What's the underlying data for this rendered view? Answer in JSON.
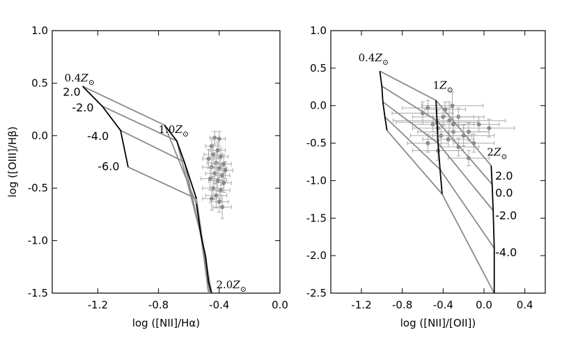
{
  "chart_data": [
    {
      "type": "line",
      "xlabel": "log ([NII]/Hα)",
      "ylabel": "log ([OIII]/Hβ)",
      "xlim": [
        -1.5,
        0.0
      ],
      "ylim": [
        -1.5,
        1.0
      ],
      "xticks": [
        "-1.2",
        "-0.8",
        "-0.4",
        "0.0"
      ],
      "xtick_values": [
        -1.2,
        -0.8,
        -0.4,
        0.0
      ],
      "yticks": [
        "1.0",
        "0.5",
        "0.0",
        "-0.5",
        "-1.0",
        "-1.5"
      ],
      "ytick_values": [
        1.0,
        0.5,
        0.0,
        -0.5,
        -1.0,
        -1.5
      ],
      "metallicity_labels": [
        {
          "prefix": "0.4",
          "x": -1.42,
          "y": 0.55
        },
        {
          "prefix": "1.0",
          "x": -0.8,
          "y": 0.06
        },
        {
          "prefix": "2.0",
          "x": -0.42,
          "y": -1.42
        }
      ],
      "ionization_labels": [
        {
          "text": "2.0",
          "x": -1.43,
          "y": 0.42
        },
        {
          "text": "-2.0",
          "x": -1.37,
          "y": 0.27
        },
        {
          "text": "-4.0",
          "x": -1.27,
          "y": 0.0
        },
        {
          "text": "-6.0",
          "x": -1.2,
          "y": -0.29
        }
      ],
      "metallicity_tracks": [
        {
          "name": "0.4Z",
          "x": [
            -1.3,
            -1.17,
            -1.05,
            -1.0
          ],
          "y": [
            0.47,
            0.28,
            0.05,
            -0.3
          ]
        },
        {
          "name": "1.0Z",
          "x": [
            -0.76,
            -0.68,
            -0.63,
            -0.55
          ],
          "y": [
            0.1,
            -0.05,
            -0.25,
            -0.6
          ]
        },
        {
          "name": "2.0Z",
          "x": [
            -0.55,
            -0.52,
            -0.49,
            -0.47,
            -0.45,
            -0.45
          ],
          "y": [
            -0.65,
            -0.95,
            -1.15,
            -1.4,
            -1.5,
            -1.5
          ]
        }
      ],
      "ionization_tracks": [
        {
          "name": "2.0",
          "x": [
            -1.3,
            -0.76,
            -0.55,
            -0.5,
            -0.47
          ],
          "y": [
            0.47,
            0.1,
            -0.65,
            -1.17,
            -1.5
          ]
        },
        {
          "name": "-2.0",
          "x": [
            -1.17,
            -0.68,
            -0.52,
            -0.49,
            -0.46
          ],
          "y": [
            0.28,
            -0.05,
            -0.95,
            -1.2,
            -1.5
          ]
        },
        {
          "name": "-4.0",
          "x": [
            -1.05,
            -0.63,
            -0.49,
            -0.47,
            -0.45
          ],
          "y": [
            0.05,
            -0.25,
            -1.15,
            -1.35,
            -1.5
          ]
        },
        {
          "name": "-6.0",
          "x": [
            -1.0,
            -0.55,
            -0.5,
            -0.45
          ],
          "y": [
            -0.3,
            -0.6,
            -1.1,
            -1.5
          ]
        }
      ],
      "points": [
        {
          "x": -0.43,
          "y": -0.02,
          "xerr": 0.03,
          "yerr": 0.06
        },
        {
          "x": -0.4,
          "y": -0.03,
          "xerr": 0.04,
          "yerr": 0.07
        },
        {
          "x": -0.45,
          "y": -0.1,
          "xerr": 0.04,
          "yerr": 0.08
        },
        {
          "x": -0.41,
          "y": -0.14,
          "xerr": 0.05,
          "yerr": 0.08
        },
        {
          "x": -0.47,
          "y": -0.22,
          "xerr": 0.04,
          "yerr": 0.09
        },
        {
          "x": -0.44,
          "y": -0.18,
          "xerr": 0.06,
          "yerr": 0.09
        },
        {
          "x": -0.39,
          "y": -0.2,
          "xerr": 0.05,
          "yerr": 0.08
        },
        {
          "x": -0.42,
          "y": -0.26,
          "xerr": 0.06,
          "yerr": 0.1
        },
        {
          "x": -0.37,
          "y": -0.27,
          "xerr": 0.05,
          "yerr": 0.09
        },
        {
          "x": -0.45,
          "y": -0.3,
          "xerr": 0.06,
          "yerr": 0.1
        },
        {
          "x": -0.4,
          "y": -0.31,
          "xerr": 0.05,
          "yerr": 0.09
        },
        {
          "x": -0.36,
          "y": -0.33,
          "xerr": 0.05,
          "yerr": 0.08
        },
        {
          "x": -0.43,
          "y": -0.36,
          "xerr": 0.06,
          "yerr": 0.1
        },
        {
          "x": -0.38,
          "y": -0.38,
          "xerr": 0.05,
          "yerr": 0.09
        },
        {
          "x": -0.46,
          "y": -0.41,
          "xerr": 0.06,
          "yerr": 0.11
        },
        {
          "x": -0.41,
          "y": -0.43,
          "xerr": 0.06,
          "yerr": 0.1
        },
        {
          "x": -0.37,
          "y": -0.45,
          "xerr": 0.05,
          "yerr": 0.09
        },
        {
          "x": -0.44,
          "y": -0.5,
          "xerr": 0.07,
          "yerr": 0.11
        },
        {
          "x": -0.39,
          "y": -0.52,
          "xerr": 0.06,
          "yerr": 0.1
        },
        {
          "x": -0.42,
          "y": -0.57,
          "xerr": 0.07,
          "yerr": 0.12
        },
        {
          "x": -0.45,
          "y": -0.6,
          "xerr": 0.06,
          "yerr": 0.11
        },
        {
          "x": -0.4,
          "y": -0.63,
          "xerr": 0.06,
          "yerr": 0.1
        },
        {
          "x": -0.38,
          "y": -0.68,
          "xerr": 0.06,
          "yerr": 0.11
        }
      ]
    },
    {
      "type": "line",
      "xlabel": "log ([NII]/[OII])",
      "ylabel": "",
      "xlim": [
        -1.5,
        0.6
      ],
      "ylim": [
        -2.5,
        1.0
      ],
      "xticks": [
        "-1.2",
        "-0.8",
        "-0.4",
        "0.0",
        "0.4"
      ],
      "xtick_values": [
        -1.2,
        -0.8,
        -0.4,
        0.0,
        0.4
      ],
      "yticks": [
        "1.0",
        "0.5",
        "0.0",
        "-0.5",
        "-1.0",
        "-1.5",
        "-2.0",
        "-2.5"
      ],
      "ytick_values": [
        1.0,
        0.5,
        0.0,
        -0.5,
        -1.0,
        -1.5,
        -2.0,
        -2.5
      ],
      "metallicity_labels": [
        {
          "prefix": "0.4",
          "x": -1.23,
          "y": 0.64
        },
        {
          "prefix": "1",
          "x": -0.5,
          "y": 0.27
        },
        {
          "prefix": "2",
          "x": 0.03,
          "y": -0.62
        }
      ],
      "ionization_labels": [
        {
          "text": "2.0",
          "x": 0.11,
          "y": -0.93
        },
        {
          "text": "0.0",
          "x": 0.11,
          "y": -1.16
        },
        {
          "text": "-2.0",
          "x": 0.11,
          "y": -1.46
        },
        {
          "text": "-4.0",
          "x": 0.11,
          "y": -1.95
        }
      ],
      "metallicity_tracks": [
        {
          "name": "0.4Z",
          "x": [
            -1.02,
            -1.0,
            -0.99,
            -0.97,
            -0.95
          ],
          "y": [
            0.46,
            0.26,
            0.05,
            -0.15,
            -0.33
          ]
        },
        {
          "name": "1Z",
          "x": [
            -0.47,
            -0.46,
            -0.45,
            -0.43,
            -0.41
          ],
          "y": [
            0.07,
            -0.2,
            -0.5,
            -0.85,
            -1.18
          ]
        },
        {
          "name": "2Z",
          "x": [
            0.07,
            0.08,
            0.09,
            0.1,
            0.1
          ],
          "y": [
            -0.8,
            -1.05,
            -1.4,
            -1.9,
            -2.5
          ]
        }
      ],
      "ionization_tracks": [
        {
          "name": "2.0",
          "x": [
            -1.02,
            -0.47,
            0.07
          ],
          "y": [
            0.46,
            0.07,
            -0.8
          ]
        },
        {
          "name": "1.0",
          "x": [
            -1.0,
            -0.46,
            0.08
          ],
          "y": [
            0.26,
            -0.2,
            -1.05
          ]
        },
        {
          "name": "0.0",
          "x": [
            -0.99,
            -0.45,
            0.09
          ],
          "y": [
            0.05,
            -0.5,
            -1.4
          ]
        },
        {
          "name": "-2.0",
          "x": [
            -0.97,
            -0.43,
            0.1
          ],
          "y": [
            -0.15,
            -0.85,
            -1.9
          ]
        },
        {
          "name": "-4.0",
          "x": [
            -0.95,
            -0.41,
            0.1
          ],
          "y": [
            -0.33,
            -1.18,
            -2.5
          ]
        }
      ],
      "points": [
        {
          "x": -0.34,
          "y": -0.2,
          "xerr": 0.55,
          "yerr": 0.25
        },
        {
          "x": -0.46,
          "y": -0.22,
          "xerr": 0.4,
          "yerr": 0.15
        },
        {
          "x": -0.6,
          "y": -0.1,
          "xerr": 0.3,
          "yerr": 0.15
        },
        {
          "x": -0.55,
          "y": -0.03,
          "xerr": 0.25,
          "yerr": 0.1
        },
        {
          "x": -0.38,
          "y": -0.05,
          "xerr": 0.2,
          "yerr": 0.1
        },
        {
          "x": -0.31,
          "y": -0.0,
          "xerr": 0.3,
          "yerr": 0.18
        },
        {
          "x": -0.25,
          "y": -0.15,
          "xerr": 0.25,
          "yerr": 0.12
        },
        {
          "x": -0.45,
          "y": -0.3,
          "xerr": 0.25,
          "yerr": 0.12
        },
        {
          "x": -0.5,
          "y": -0.25,
          "xerr": 0.2,
          "yerr": 0.1
        },
        {
          "x": -0.42,
          "y": -0.4,
          "xerr": 0.3,
          "yerr": 0.15
        },
        {
          "x": -0.3,
          "y": -0.35,
          "xerr": 0.35,
          "yerr": 0.12
        },
        {
          "x": -0.2,
          "y": -0.4,
          "xerr": 0.3,
          "yerr": 0.14
        },
        {
          "x": -0.1,
          "y": -0.5,
          "xerr": 0.2,
          "yerr": 0.12
        },
        {
          "x": -0.35,
          "y": -0.45,
          "xerr": 0.25,
          "yerr": 0.1
        },
        {
          "x": -0.25,
          "y": -0.55,
          "xerr": 0.2,
          "yerr": 0.12
        },
        {
          "x": -0.45,
          "y": -0.6,
          "xerr": 0.25,
          "yerr": 0.13
        },
        {
          "x": -0.15,
          "y": -0.7,
          "xerr": 0.2,
          "yerr": 0.1
        },
        {
          "x": -0.55,
          "y": -0.5,
          "xerr": 0.2,
          "yerr": 0.12
        },
        {
          "x": 0.05,
          "y": -0.3,
          "xerr": 0.25,
          "yerr": 0.12
        },
        {
          "x": -0.05,
          "y": -0.25,
          "xerr": 0.2,
          "yerr": 0.1
        },
        {
          "x": -0.15,
          "y": -0.35,
          "xerr": 0.2,
          "yerr": 0.12
        },
        {
          "x": -0.4,
          "y": -0.15,
          "xerr": 0.3,
          "yerr": 0.12
        },
        {
          "x": -0.3,
          "y": -0.25,
          "xerr": 0.2,
          "yerr": 0.1
        }
      ]
    }
  ]
}
